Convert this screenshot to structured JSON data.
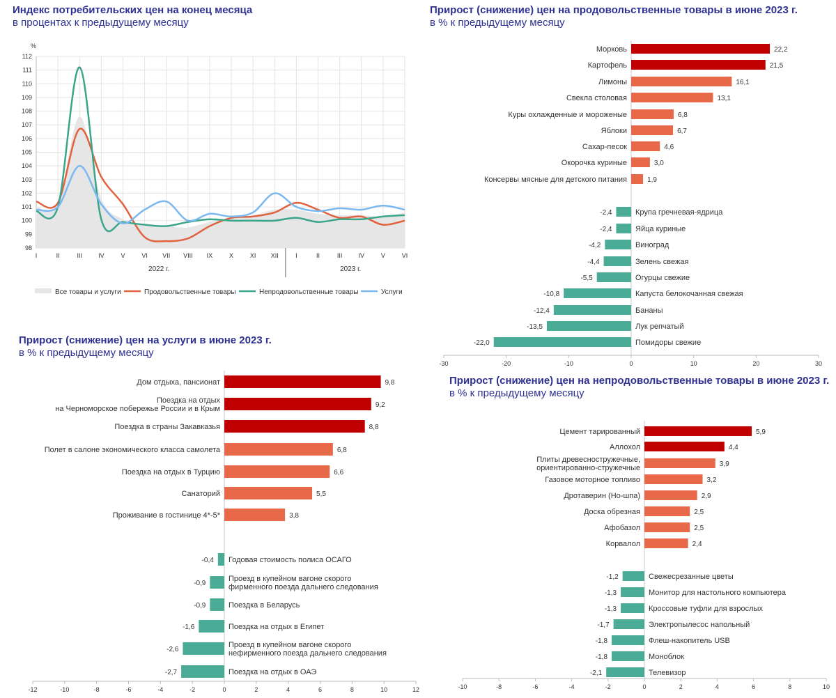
{
  "colors": {
    "title": "#2e3192",
    "dark_red": "#c00000",
    "orange": "#e8694a",
    "teal": "#4aab97",
    "blue_line": "#7ab8ef",
    "area_fill": "#e6e6e6",
    "line_food": "#e0623f",
    "line_nonfood": "#3aa58a"
  },
  "chart_data": [
    {
      "type": "line",
      "title": "Индекс потребительских цен на конец месяца",
      "subtitle": "в процентах к предыдущему месяцу",
      "ylabel": "%",
      "ylim": [
        98,
        112
      ],
      "yticks": [
        "98",
        "99",
        "100",
        "101",
        "102",
        "103",
        "104",
        "105",
        "106",
        "107",
        "108",
        "109",
        "110",
        "111",
        "112"
      ],
      "x_ticks": [
        "I",
        "II",
        "III",
        "IV",
        "V",
        "VI",
        "VII",
        "VIII",
        "IX",
        "X",
        "XI",
        "XII",
        "I",
        "II",
        "III",
        "IV",
        "V",
        "VI"
      ],
      "year_labels": [
        "2022 г.",
        "2023 г."
      ],
      "grid": true,
      "legend_position": "bottom",
      "series": [
        {
          "name": "Все товары и услуги",
          "style": "area",
          "values": [
            101.0,
            101.2,
            107.6,
            101.6,
            100.1,
            99.7,
            99.6,
            99.5,
            99.9,
            100.2,
            100.4,
            100.8,
            100.8,
            100.5,
            100.4,
            100.4,
            100.3,
            100.6
          ]
        },
        {
          "name": "Продовольственные товары",
          "style": "line",
          "values": [
            101.4,
            101.3,
            106.7,
            103.2,
            101.2,
            98.8,
            98.5,
            98.7,
            99.6,
            100.2,
            100.3,
            100.6,
            101.3,
            100.8,
            100.2,
            100.3,
            99.7,
            100.0
          ]
        },
        {
          "name": "Непродовольственные товары",
          "style": "line",
          "values": [
            100.7,
            101.0,
            111.2,
            100.1,
            99.9,
            99.7,
            99.6,
            99.9,
            100.1,
            100.0,
            100.0,
            100.0,
            100.2,
            99.9,
            100.1,
            100.1,
            100.3,
            100.4
          ]
        },
        {
          "name": "Услуги",
          "style": "line",
          "values": [
            100.8,
            101.0,
            104.0,
            101.2,
            99.8,
            100.8,
            101.4,
            100.0,
            100.5,
            100.3,
            100.6,
            102.0,
            101.0,
            100.7,
            100.9,
            100.8,
            101.1,
            100.8
          ]
        }
      ]
    },
    {
      "type": "bar",
      "orientation": "horizontal",
      "title": "Прирост (снижение) цен на продовольственные товары в июне 2023 г.",
      "subtitle": "в % к предыдущему месяцу",
      "xlim": [
        -30,
        30
      ],
      "xticks": [
        "-30",
        "-20",
        "-10",
        "0",
        "10",
        "20",
        "30"
      ],
      "items": [
        {
          "label": "Морковь",
          "value": 22.2,
          "value_label": "22,2",
          "color": "dark_red"
        },
        {
          "label": "Картофель",
          "value": 21.5,
          "value_label": "21,5",
          "color": "dark_red"
        },
        {
          "label": "Лимоны",
          "value": 16.1,
          "value_label": "16,1",
          "color": "orange"
        },
        {
          "label": "Свекла столовая",
          "value": 13.1,
          "value_label": "13,1",
          "color": "orange"
        },
        {
          "label": "Куры  охлажденные и мороженые",
          "value": 6.8,
          "value_label": "6,8",
          "color": "orange"
        },
        {
          "label": "Яблоки",
          "value": 6.7,
          "value_label": "6,7",
          "color": "orange"
        },
        {
          "label": "Сахар-песок",
          "value": 4.6,
          "value_label": "4,6",
          "color": "orange"
        },
        {
          "label": "Окорочка куриные",
          "value": 3.0,
          "value_label": "3,0",
          "color": "orange"
        },
        {
          "label": "Консервы мясные для детского питания",
          "value": 1.9,
          "value_label": "1,9",
          "color": "orange"
        },
        {
          "label": "Крупа гречневая-ядрица",
          "value": -2.4,
          "value_label": "-2,4",
          "color": "teal"
        },
        {
          "label": "Яйца куриные",
          "value": -2.4,
          "value_label": "-2,4",
          "color": "teal"
        },
        {
          "label": "Виноград",
          "value": -4.2,
          "value_label": "-4,2",
          "color": "teal"
        },
        {
          "label": "Зелень свежая",
          "value": -4.4,
          "value_label": "-4,4",
          "color": "teal"
        },
        {
          "label": "Огурцы свежие",
          "value": -5.5,
          "value_label": "-5,5",
          "color": "teal"
        },
        {
          "label": "Капуста белокочанная свежая",
          "value": -10.8,
          "value_label": "-10,8",
          "color": "teal"
        },
        {
          "label": "Бананы",
          "value": -12.4,
          "value_label": "-12,4",
          "color": "teal"
        },
        {
          "label": "Лук репчатый",
          "value": -13.5,
          "value_label": "-13,5",
          "color": "teal"
        },
        {
          "label": "Помидоры свежие",
          "value": -22.0,
          "value_label": "-22,0",
          "color": "teal"
        }
      ]
    },
    {
      "type": "bar",
      "orientation": "horizontal",
      "title": "Прирост (снижение) цен на услуги в июне 2023 г.",
      "subtitle": "в % к предыдущему месяцу",
      "xlim": [
        -12,
        12
      ],
      "xticks": [
        "-12",
        "-10",
        "-8",
        "-6",
        "-4",
        "-2",
        "0",
        "2",
        "4",
        "6",
        "8",
        "10",
        "12"
      ],
      "items": [
        {
          "label": "Дом отдыха,  пансионат",
          "value": 9.8,
          "value_label": "9,8",
          "color": "dark_red"
        },
        {
          "label": "Поездка на отдых\nна Черноморское побережье России и в Крым",
          "value": 9.2,
          "value_label": "9,2",
          "color": "dark_red"
        },
        {
          "label": "Поездка в страны Закавказья",
          "value": 8.8,
          "value_label": "8,8",
          "color": "dark_red"
        },
        {
          "label": "Полет в салоне экономического класса самолета",
          "value": 6.8,
          "value_label": "6,8",
          "color": "orange"
        },
        {
          "label": "Поездка на отдых в Турцию",
          "value": 6.6,
          "value_label": "6,6",
          "color": "orange"
        },
        {
          "label": "Санаторий",
          "value": 5.5,
          "value_label": "5,5",
          "color": "orange"
        },
        {
          "label": "Проживание в гостинице 4*-5*",
          "value": 3.8,
          "value_label": "3,8",
          "color": "orange"
        },
        {
          "label": "Годовая стоимость полиса ОСАГО",
          "value": -0.4,
          "value_label": "-0,4",
          "color": "teal"
        },
        {
          "label": "Проезд в купейном вагоне скорого\nфирменного поезда дальнего следования",
          "value": -0.9,
          "value_label": "-0,9",
          "color": "teal"
        },
        {
          "label": "Поездка в Беларусь",
          "value": -0.9,
          "value_label": "-0,9",
          "color": "teal"
        },
        {
          "label": "Поездка на отдых в Египет",
          "value": -1.6,
          "value_label": "-1,6",
          "color": "teal"
        },
        {
          "label": "Проезд в купейном вагоне скорого\nнефирменного поезда дальнего следования",
          "value": -2.6,
          "value_label": "-2,6",
          "color": "teal"
        },
        {
          "label": "Поездка на отдых в ОАЭ",
          "value": -2.7,
          "value_label": "-2,7",
          "color": "teal"
        }
      ]
    },
    {
      "type": "bar",
      "orientation": "horizontal",
      "title": "Прирост (снижение) цен на непродовольственные товары в июне 2023 г.",
      "subtitle": "в % к предыдущему месяцу",
      "xlim": [
        -10,
        10
      ],
      "xticks": [
        "-10",
        "-8",
        "-6",
        "-4",
        "-2",
        "0",
        "2",
        "4",
        "6",
        "8",
        "10"
      ],
      "items": [
        {
          "label": "Цемент тарированный",
          "value": 5.9,
          "value_label": "5,9",
          "color": "dark_red"
        },
        {
          "label": "Аллохол",
          "value": 4.4,
          "value_label": "4,4",
          "color": "dark_red"
        },
        {
          "label": "Плиты древесностружечные,\nориентированно-стружечные",
          "value": 3.9,
          "value_label": "3,9",
          "color": "orange"
        },
        {
          "label": "Газовое моторное топливо",
          "value": 3.2,
          "value_label": "3,2",
          "color": "orange"
        },
        {
          "label": "Дротаверин (Но-шпа)",
          "value": 2.9,
          "value_label": "2,9",
          "color": "orange"
        },
        {
          "label": "Доска обрезная",
          "value": 2.5,
          "value_label": "2,5",
          "color": "orange"
        },
        {
          "label": "Афобазол",
          "value": 2.5,
          "value_label": "2,5",
          "color": "orange"
        },
        {
          "label": "Корвалол",
          "value": 2.4,
          "value_label": "2,4",
          "color": "orange"
        },
        {
          "label": "Свежесрезанные цветы",
          "value": -1.2,
          "value_label": "-1,2",
          "color": "teal"
        },
        {
          "label": "Монитор для настольного компьютера",
          "value": -1.3,
          "value_label": "-1,3",
          "color": "teal"
        },
        {
          "label": "Кроссовые туфли для взрослых",
          "value": -1.3,
          "value_label": "-1,3",
          "color": "teal"
        },
        {
          "label": "Электропылесос напольный",
          "value": -1.7,
          "value_label": "-1,7",
          "color": "teal"
        },
        {
          "label": "Флеш-накопитель USB",
          "value": -1.8,
          "value_label": "-1,8",
          "color": "teal"
        },
        {
          "label": "Моноблок",
          "value": -1.8,
          "value_label": "-1,8",
          "color": "teal"
        },
        {
          "label": "Телевизор",
          "value": -2.1,
          "value_label": "-2,1",
          "color": "teal"
        }
      ]
    }
  ]
}
